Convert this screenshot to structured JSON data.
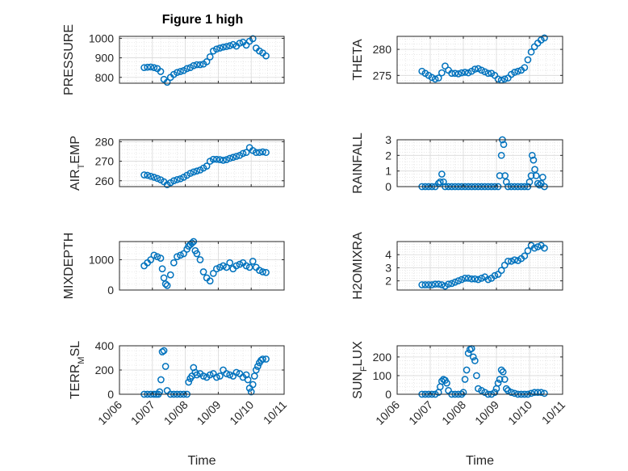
{
  "figure": {
    "title": "Figure 1 high",
    "marker_color": "#0072BD",
    "axis_color": "#262626",
    "grid_color": "#d9d9d9",
    "x_tick_labels": [
      "10/06",
      "10/07",
      "10/08",
      "10/09",
      "10/10",
      "10/11"
    ]
  },
  "chart_data": [
    {
      "type": "scatter",
      "title": "Figure 1 high",
      "ylabel": "PRESSURE",
      "ylabel_parts": [
        {
          "t": "PRESSURE",
          "sub": false
        }
      ],
      "xlabel": "",
      "xlim": [
        "2019-10-06",
        "2019-10-11"
      ],
      "ylim": [
        770,
        1010
      ],
      "yticks": [
        800,
        900,
        1000
      ],
      "grid": true,
      "series": [
        {
          "x": [
            6.75,
            6.85,
            6.95,
            7.05,
            7.15,
            7.25,
            7.35,
            7.45,
            7.55,
            7.65,
            7.75,
            7.85,
            7.95,
            8.05,
            8.15,
            8.25,
            8.35,
            8.45,
            8.55,
            8.65,
            8.75,
            8.85,
            8.95,
            9.05,
            9.15,
            9.25,
            9.35,
            9.45,
            9.55,
            9.65,
            9.75,
            9.85,
            9.95,
            10.05,
            10.15,
            10.25,
            10.35,
            10.45
          ],
          "y": [
            850,
            852,
            853,
            850,
            845,
            830,
            790,
            775,
            800,
            815,
            825,
            830,
            835,
            845,
            850,
            860,
            865,
            865,
            868,
            880,
            905,
            935,
            945,
            950,
            955,
            958,
            962,
            968,
            960,
            975,
            980,
            965,
            985,
            998,
            950,
            935,
            925,
            910
          ]
        }
      ]
    },
    {
      "type": "scatter",
      "ylabel": "THETA",
      "ylabel_parts": [
        {
          "t": "THETA",
          "sub": false
        }
      ],
      "xlabel": "",
      "xlim": [
        "2019-10-06",
        "2019-10-11"
      ],
      "ylim": [
        273.5,
        282.5
      ],
      "yticks": [
        275,
        280
      ],
      "grid": true,
      "series": [
        {
          "x": [
            6.75,
            6.85,
            6.95,
            7.05,
            7.15,
            7.25,
            7.35,
            7.45,
            7.55,
            7.65,
            7.75,
            7.85,
            7.95,
            8.05,
            8.15,
            8.25,
            8.35,
            8.45,
            8.55,
            8.65,
            8.75,
            8.85,
            8.95,
            9.05,
            9.15,
            9.25,
            9.35,
            9.45,
            9.55,
            9.65,
            9.75,
            9.85,
            9.95,
            10.05,
            10.15,
            10.25,
            10.35,
            10.45
          ],
          "y": [
            275.8,
            275.4,
            275,
            274.6,
            274.3,
            274.5,
            275.5,
            276.8,
            276,
            275.4,
            275.4,
            275.3,
            275.5,
            275.6,
            275.5,
            275.8,
            276.2,
            276.3,
            276,
            275.7,
            275.4,
            275.4,
            275,
            274.3,
            274.1,
            274.3,
            274.5,
            275.2,
            275.6,
            275.8,
            276,
            276.5,
            278,
            279.5,
            280.5,
            281.2,
            281.8,
            282.2
          ]
        }
      ]
    },
    {
      "type": "scatter",
      "ylabel": "AIR_TEMP",
      "ylabel_parts": [
        {
          "t": "AIR",
          "sub": false
        },
        {
          "t": "T",
          "sub": true
        },
        {
          "t": "EMP",
          "sub": false
        }
      ],
      "xlabel": "",
      "xlim": [
        "2019-10-06",
        "2019-10-11"
      ],
      "ylim": [
        257,
        281
      ],
      "yticks": [
        260,
        270,
        280
      ],
      "grid": true,
      "series": [
        {
          "x": [
            6.75,
            6.85,
            6.95,
            7.05,
            7.15,
            7.25,
            7.35,
            7.45,
            7.55,
            7.65,
            7.75,
            7.85,
            7.95,
            8.05,
            8.15,
            8.25,
            8.35,
            8.45,
            8.55,
            8.65,
            8.75,
            8.85,
            8.95,
            9.05,
            9.15,
            9.25,
            9.35,
            9.45,
            9.55,
            9.65,
            9.75,
            9.85,
            9.95,
            10.05,
            10.15,
            10.25,
            10.35,
            10.45
          ],
          "y": [
            263,
            262.8,
            262.3,
            261.8,
            261.2,
            260.5,
            259.5,
            258,
            259,
            260,
            260.6,
            261,
            261.8,
            262.8,
            263.8,
            264.5,
            265,
            265.5,
            266.5,
            267.5,
            270,
            271,
            271,
            270.8,
            270.5,
            270.8,
            271.5,
            272,
            272.5,
            273,
            274,
            274.5,
            277,
            275.5,
            274.5,
            274.5,
            274.8,
            274.5
          ]
        }
      ]
    },
    {
      "type": "scatter",
      "ylabel": "RAINFALL",
      "ylabel_parts": [
        {
          "t": "RAINFALL",
          "sub": false
        }
      ],
      "xlabel": "",
      "xlim": [
        "2019-10-06",
        "2019-10-11"
      ],
      "ylim": [
        0,
        3
      ],
      "yticks": [
        0,
        1,
        2,
        3
      ],
      "grid": true,
      "series": [
        {
          "x": [
            6.75,
            6.85,
            6.95,
            7.05,
            7.15,
            7.25,
            7.3,
            7.35,
            7.4,
            7.45,
            7.55,
            7.65,
            7.75,
            7.85,
            7.95,
            8.05,
            8.15,
            8.25,
            8.35,
            8.45,
            8.55,
            8.65,
            8.75,
            8.85,
            8.95,
            9.05,
            9.1,
            9.15,
            9.18,
            9.22,
            9.26,
            9.3,
            9.35,
            9.45,
            9.55,
            9.65,
            9.75,
            9.85,
            9.95,
            10.0,
            10.05,
            10.08,
            10.12,
            10.16,
            10.2,
            10.25,
            10.3,
            10.35,
            10.4,
            10.45
          ],
          "y": [
            0,
            0,
            0,
            0,
            0,
            0.2,
            0.3,
            0.8,
            0.3,
            0,
            0,
            0,
            0,
            0,
            0,
            0,
            0,
            0,
            0,
            0,
            0,
            0,
            0,
            0,
            0,
            0,
            0.7,
            2.0,
            3.0,
            2.7,
            0.7,
            0.3,
            0,
            0,
            0,
            0,
            0,
            0,
            0,
            0.3,
            0.7,
            2.0,
            1.7,
            1.1,
            0.7,
            0.2,
            0.1,
            0.2,
            0.6,
            0
          ]
        }
      ]
    },
    {
      "type": "scatter",
      "ylabel": "MIXDEPTH",
      "ylabel_parts": [
        {
          "t": "MIXDEPTH",
          "sub": false
        }
      ],
      "xlabel": "",
      "xlim": [
        "2019-10-06",
        "2019-10-11"
      ],
      "ylim": [
        0,
        1600
      ],
      "yticks": [
        0,
        1000
      ],
      "grid": true,
      "series": [
        {
          "x": [
            6.75,
            6.85,
            6.95,
            7.05,
            7.15,
            7.25,
            7.3,
            7.35,
            7.4,
            7.45,
            7.55,
            7.65,
            7.75,
            7.85,
            7.95,
            8.05,
            8.1,
            8.15,
            8.2,
            8.25,
            8.3,
            8.35,
            8.45,
            8.55,
            8.65,
            8.75,
            8.85,
            8.95,
            9.05,
            9.15,
            9.25,
            9.35,
            9.45,
            9.55,
            9.65,
            9.75,
            9.85,
            9.95,
            10.05,
            10.15,
            10.25,
            10.35,
            10.45
          ],
          "y": [
            800,
            900,
            1000,
            1150,
            1100,
            1050,
            700,
            400,
            200,
            150,
            500,
            900,
            1100,
            1150,
            1200,
            1350,
            1450,
            1500,
            1550,
            1600,
            1300,
            1200,
            1000,
            600,
            400,
            300,
            550,
            700,
            750,
            800,
            750,
            900,
            700,
            800,
            850,
            900,
            800,
            750,
            950,
            750,
            650,
            600,
            580
          ]
        }
      ]
    },
    {
      "type": "scatter",
      "ylabel": "H2OMIXRA",
      "ylabel_parts": [
        {
          "t": "H2OMIXRA",
          "sub": false
        }
      ],
      "xlabel": "",
      "xlim": [
        "2019-10-06",
        "2019-10-11"
      ],
      "ylim": [
        1.3,
        5.0
      ],
      "yticks": [
        2,
        3,
        4
      ],
      "grid": true,
      "series": [
        {
          "x": [
            6.75,
            6.85,
            6.95,
            7.05,
            7.15,
            7.25,
            7.35,
            7.45,
            7.55,
            7.65,
            7.75,
            7.85,
            7.95,
            8.05,
            8.15,
            8.25,
            8.35,
            8.45,
            8.55,
            8.65,
            8.75,
            8.85,
            8.95,
            9.05,
            9.15,
            9.25,
            9.35,
            9.45,
            9.55,
            9.65,
            9.75,
            9.85,
            9.95,
            10.05,
            10.15,
            10.25,
            10.35,
            10.45
          ],
          "y": [
            1.7,
            1.7,
            1.7,
            1.7,
            1.75,
            1.75,
            1.7,
            1.6,
            1.75,
            1.8,
            1.9,
            2.0,
            2.1,
            2.2,
            2.2,
            2.15,
            2.15,
            2.1,
            2.2,
            2.3,
            2.1,
            2.2,
            2.4,
            2.5,
            2.8,
            3.2,
            3.5,
            3.5,
            3.6,
            3.55,
            3.7,
            3.9,
            4.3,
            4.7,
            4.5,
            4.6,
            4.7,
            4.5
          ]
        }
      ]
    },
    {
      "type": "scatter",
      "ylabel": "TERR_MSL",
      "ylabel_parts": [
        {
          "t": "TERR",
          "sub": false
        },
        {
          "t": "M",
          "sub": true
        },
        {
          "t": "SL",
          "sub": false
        }
      ],
      "xlabel": "Time",
      "xlim": [
        "2019-10-06",
        "2019-10-11"
      ],
      "ylim": [
        0,
        400
      ],
      "yticks": [
        0,
        200,
        400
      ],
      "grid": true,
      "series": [
        {
          "x": [
            6.75,
            6.85,
            6.95,
            7.05,
            7.12,
            7.18,
            7.22,
            7.26,
            7.3,
            7.35,
            7.4,
            7.45,
            7.55,
            7.65,
            7.75,
            7.85,
            7.95,
            8.05,
            8.1,
            8.15,
            8.2,
            8.25,
            8.3,
            8.35,
            8.45,
            8.55,
            8.65,
            8.75,
            8.85,
            8.95,
            9.05,
            9.15,
            9.25,
            9.35,
            9.45,
            9.55,
            9.65,
            9.75,
            9.85,
            9.9,
            9.95,
            10.0,
            10.05,
            10.1,
            10.15,
            10.2,
            10.25,
            10.3,
            10.35,
            10.45
          ],
          "y": [
            0,
            0,
            0,
            0,
            0,
            0,
            20,
            120,
            350,
            360,
            230,
            30,
            0,
            0,
            0,
            0,
            0,
            0,
            100,
            130,
            150,
            220,
            180,
            160,
            170,
            150,
            140,
            160,
            170,
            140,
            150,
            200,
            170,
            160,
            150,
            180,
            170,
            140,
            160,
            120,
            50,
            20,
            80,
            150,
            200,
            230,
            260,
            280,
            290,
            290
          ]
        }
      ]
    },
    {
      "type": "scatter",
      "ylabel": "SUN_FLUX",
      "ylabel_parts": [
        {
          "t": "SUN",
          "sub": false
        },
        {
          "t": "F",
          "sub": true
        },
        {
          "t": "LUX",
          "sub": false
        }
      ],
      "xlabel": "Time",
      "xlim": [
        "2019-10-06",
        "2019-10-11"
      ],
      "ylim": [
        0,
        260
      ],
      "yticks": [
        0,
        100,
        200
      ],
      "grid": true,
      "series": [
        {
          "x": [
            6.75,
            6.85,
            6.95,
            7.05,
            7.15,
            7.25,
            7.3,
            7.35,
            7.4,
            7.45,
            7.5,
            7.55,
            7.65,
            7.75,
            7.85,
            7.95,
            8.0,
            8.05,
            8.1,
            8.15,
            8.2,
            8.25,
            8.3,
            8.35,
            8.4,
            8.45,
            8.55,
            8.65,
            8.75,
            8.85,
            8.95,
            9.0,
            9.05,
            9.1,
            9.15,
            9.2,
            9.25,
            9.3,
            9.35,
            9.45,
            9.55,
            9.65,
            9.75,
            9.85,
            9.95,
            10.05,
            10.15,
            10.25,
            10.35,
            10.45
          ],
          "y": [
            0,
            0,
            0,
            0,
            0,
            10,
            40,
            70,
            80,
            75,
            60,
            20,
            0,
            0,
            0,
            0,
            10,
            80,
            130,
            220,
            240,
            245,
            200,
            180,
            100,
            30,
            20,
            10,
            0,
            0,
            10,
            30,
            60,
            80,
            130,
            120,
            80,
            30,
            20,
            10,
            5,
            0,
            0,
            0,
            0,
            5,
            10,
            10,
            10,
            5
          ]
        }
      ]
    }
  ]
}
